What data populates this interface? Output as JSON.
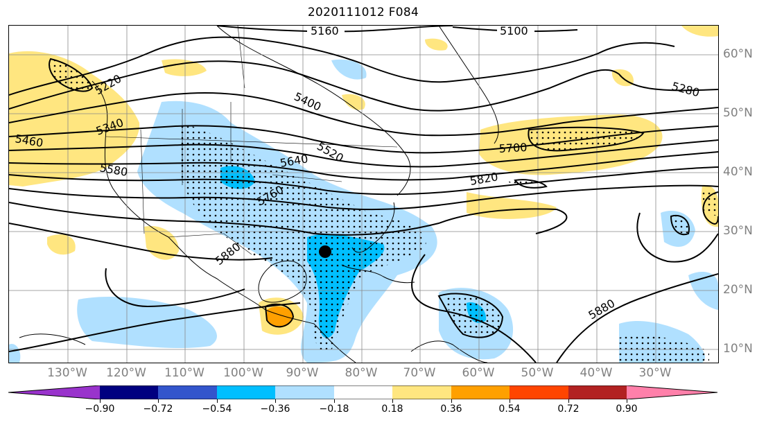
{
  "title": "2020111012 F084",
  "lon_labels": [
    "130°W",
    "120°W",
    "110°W",
    "100°W",
    "90°W",
    "80°W",
    "70°W",
    "60°W",
    "50°W",
    "40°W",
    "30°W"
  ],
  "lat_labels": [
    "60°N",
    "50°N",
    "40°N",
    "30°N",
    "20°N",
    "10°N"
  ],
  "contour_labels": [
    "5160",
    "5100",
    "5220",
    "5280",
    "5340",
    "5400",
    "5460",
    "5520",
    "5580",
    "5640",
    "5700",
    "5760",
    "5820",
    "5880",
    "5880"
  ],
  "colorbar": {
    "ticks": [
      "−0.90",
      "−0.72",
      "−0.54",
      "−0.36",
      "−0.18",
      "0.18",
      "0.36",
      "0.54",
      "0.72",
      "0.90"
    ],
    "colors": [
      "#9933cc",
      "#000080",
      "#3355cc",
      "#00bfff",
      "#b0e0ff",
      "#ffffff",
      "#ffe680",
      "#ffa000",
      "#ff4500",
      "#b22222",
      "#ff80aa"
    ]
  },
  "storm_marker": "black-dot"
}
